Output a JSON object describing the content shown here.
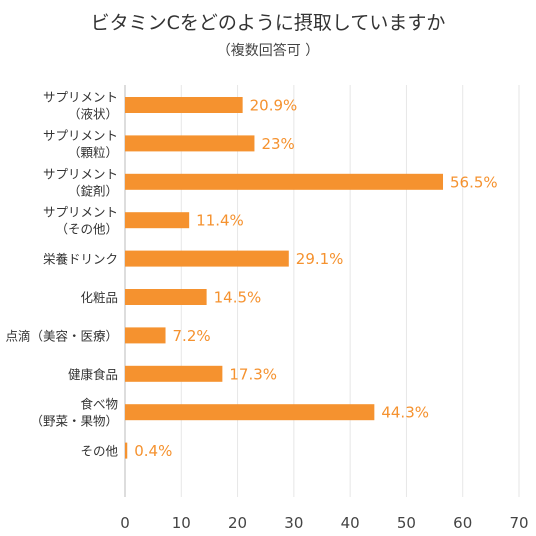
{
  "chart_data": {
    "type": "bar",
    "orientation": "horizontal",
    "title": "ビタミンCをどのように摂取していますか",
    "subtitle": "（複数回答可 ）",
    "categories": [
      "サプリメント\n（液状）",
      "サプリメント\n（顆粒）",
      "サプリメント\n（錠剤）",
      "サプリメント\n（その他）",
      "栄養ドリンク",
      "化粧品",
      "点滴（美容・医療）",
      "健康食品",
      "食べ物\n（野菜・果物）",
      "その他"
    ],
    "values": [
      20.9,
      23,
      56.5,
      11.4,
      29.1,
      14.5,
      7.2,
      17.3,
      44.3,
      0.4
    ],
    "value_labels": [
      "20.9%",
      "23%",
      "56.5%",
      "11.4%",
      "29.1%",
      "14.5%",
      "7.2%",
      "17.3%",
      "44.3%",
      "0.4%"
    ],
    "x_ticks": [
      "0",
      "10",
      "20",
      "30",
      "40",
      "50",
      "60",
      "70"
    ],
    "xlim": [
      0,
      70
    ],
    "grid": true,
    "bar_color": "#F5922F",
    "label_color": "#F5922F"
  }
}
